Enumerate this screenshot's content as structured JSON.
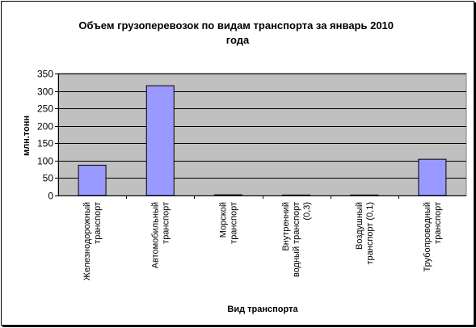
{
  "chart_data": {
    "type": "bar",
    "title": [
      "Объем грузоперевозок по видам транспорта за январь 2010",
      "года"
    ],
    "xlabel": "Вид транспорта",
    "ylabel": "млн.тонн",
    "ylim": [
      0,
      350
    ],
    "yticks": [
      0,
      50,
      100,
      150,
      200,
      250,
      300,
      350
    ],
    "grid": true,
    "legend": "none",
    "categories": [
      [
        "Железнодорожный",
        "транспорт"
      ],
      [
        "Автомобильный",
        "транспорт"
      ],
      [
        "Морской",
        "транспорт"
      ],
      [
        "Внутренний",
        "водный транспорт",
        "(0,3)"
      ],
      [
        "Воздушный",
        "транспорт (0,1)"
      ],
      [
        "Трубопроводный",
        "транспорт"
      ]
    ],
    "values": [
      87,
      315,
      2,
      0.3,
      0.1,
      104
    ],
    "colors": {
      "bar_fill": "#9999ff",
      "bar_stroke": "#000000",
      "plot_background": "#c0c0c0",
      "gridline": "#000000"
    }
  }
}
